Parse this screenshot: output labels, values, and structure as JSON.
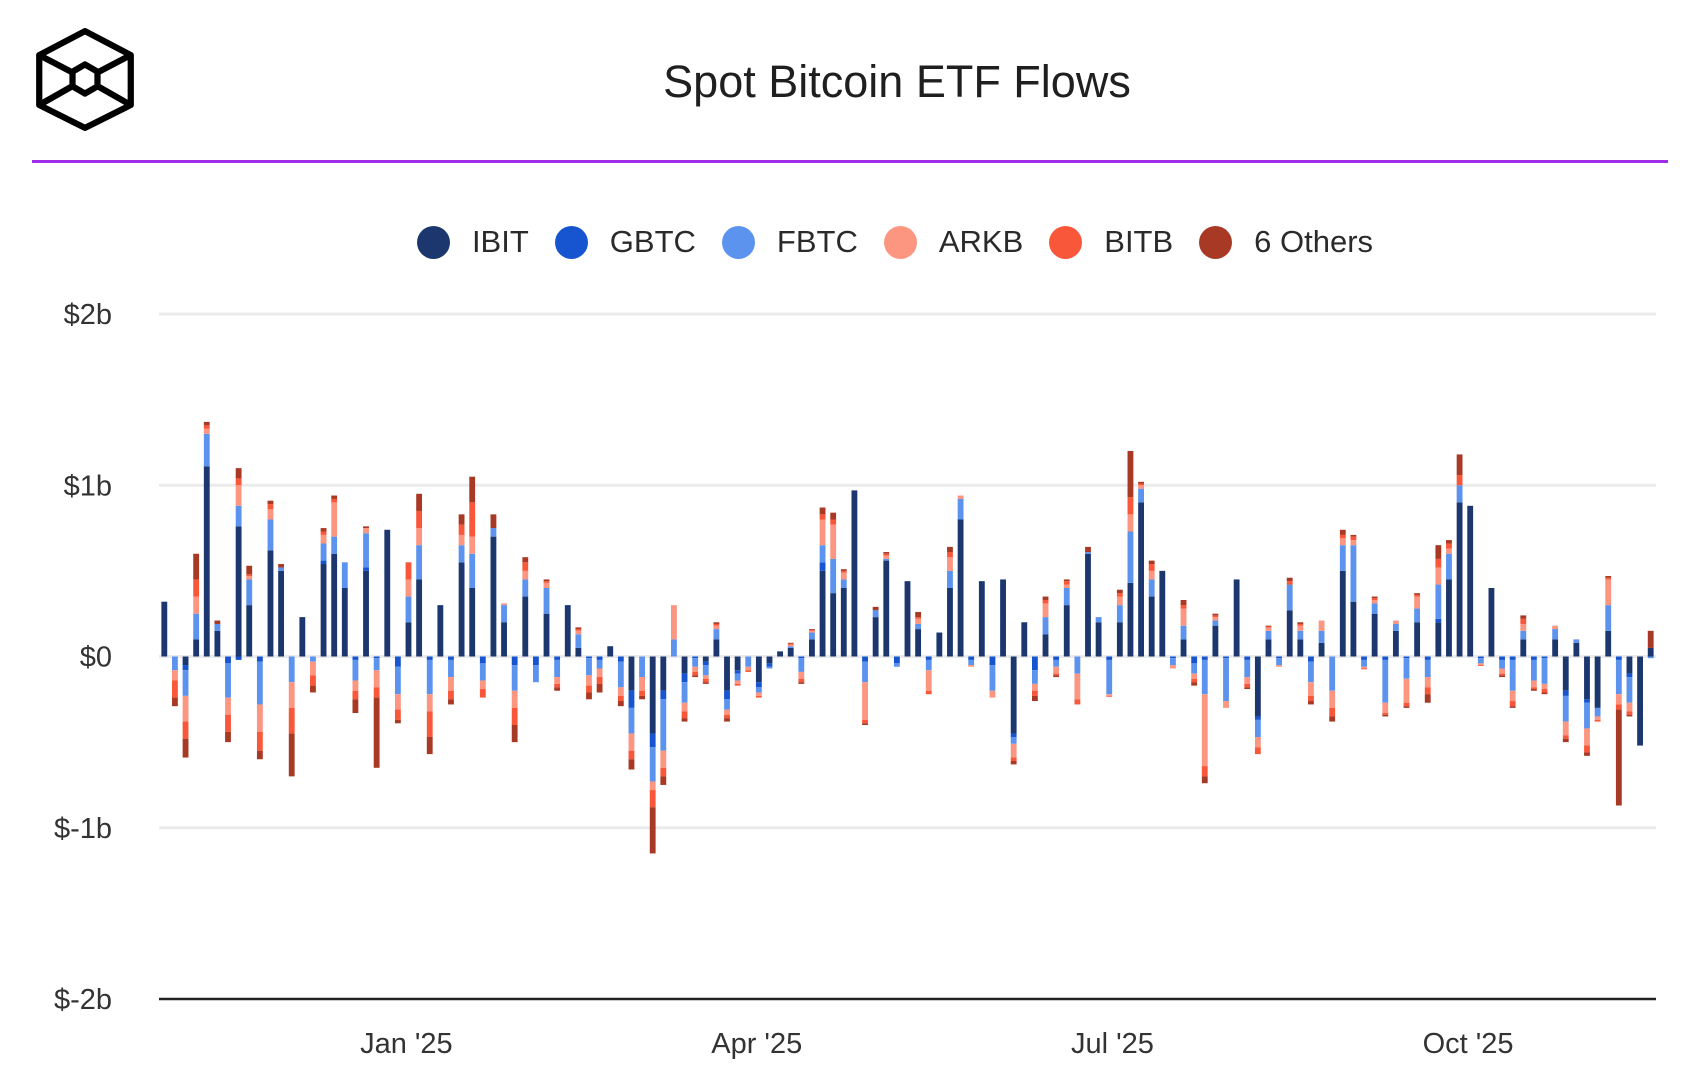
{
  "title": "Spot Bitcoin ETF Flows",
  "logo": {
    "icon": "cube-logo-icon"
  },
  "legend": [
    {
      "label": "IBIT",
      "color": "#1b376d"
    },
    {
      "label": "GBTC",
      "color": "#1655cf"
    },
    {
      "label": "FBTC",
      "color": "#5c93ee"
    },
    {
      "label": "ARKB",
      "color": "#fd9680"
    },
    {
      "label": "BITB",
      "color": "#f9573a"
    },
    {
      "label": "6 Others",
      "color": "#a83a25"
    }
  ],
  "chart_data": {
    "type": "bar",
    "stacked": true,
    "title": "Spot Bitcoin ETF Flows",
    "units": "USD millions",
    "ylim": [
      -2000,
      2000
    ],
    "yticks": [
      {
        "value": 2000,
        "label": "$2b"
      },
      {
        "value": 1000,
        "label": "$1b"
      },
      {
        "value": 0,
        "label": "$0"
      },
      {
        "value": -1000,
        "label": "$-1b"
      },
      {
        "value": -2000,
        "label": "$-2b"
      }
    ],
    "xticks": [
      {
        "index": 22.8,
        "label": "Jan '25"
      },
      {
        "index": 55.8,
        "label": "Apr '25"
      },
      {
        "index": 89.3,
        "label": "Jul '25"
      },
      {
        "index": 122.8,
        "label": "Oct '25"
      }
    ],
    "grid": true,
    "legend_position": "top-center",
    "series_order": [
      "IBIT",
      "GBTC",
      "FBTC",
      "ARKB",
      "BITB",
      "6 Others"
    ],
    "days": [
      [
        320,
        0,
        0,
        0,
        0,
        0
      ],
      [
        0,
        0,
        -80,
        -60,
        -100,
        -50
      ],
      [
        -50,
        -30,
        -150,
        -150,
        -100,
        -110
      ],
      [
        100,
        0,
        150,
        100,
        100,
        150
      ],
      [
        1110,
        0,
        190,
        30,
        20,
        20
      ],
      [
        150,
        0,
        40,
        0,
        0,
        20
      ],
      [
        0,
        -40,
        -200,
        -100,
        -100,
        -60
      ],
      [
        760,
        -20,
        120,
        120,
        40,
        60
      ],
      [
        300,
        0,
        150,
        20,
        10,
        50
      ],
      [
        0,
        -30,
        -250,
        -160,
        -110,
        -50
      ],
      [
        620,
        0,
        180,
        60,
        30,
        20
      ],
      [
        500,
        0,
        20,
        0,
        0,
        20
      ],
      [
        0,
        0,
        -150,
        -150,
        -150,
        -250
      ],
      [
        230,
        0,
        0,
        0,
        0,
        0
      ],
      [
        0,
        0,
        -30,
        -80,
        -60,
        -40
      ],
      [
        540,
        20,
        100,
        50,
        20,
        20
      ],
      [
        600,
        0,
        100,
        200,
        20,
        20
      ],
      [
        400,
        0,
        150,
        0,
        0,
        0
      ],
      [
        0,
        -20,
        -120,
        -60,
        -50,
        -80
      ],
      [
        500,
        20,
        200,
        30,
        0,
        10
      ],
      [
        0,
        -10,
        -70,
        -100,
        -60,
        -410
      ],
      [
        740,
        0,
        0,
        0,
        0,
        0
      ],
      [
        0,
        -60,
        -160,
        -90,
        -60,
        -20
      ],
      [
        200,
        0,
        150,
        100,
        100,
        0
      ],
      [
        450,
        0,
        200,
        100,
        100,
        100
      ],
      [
        0,
        -20,
        -200,
        -100,
        -150,
        -100
      ],
      [
        300,
        0,
        0,
        0,
        0,
        0
      ],
      [
        0,
        -20,
        -100,
        -80,
        -50,
        -30
      ],
      [
        550,
        0,
        100,
        60,
        60,
        60
      ],
      [
        400,
        0,
        200,
        100,
        200,
        150
      ],
      [
        0,
        -40,
        -100,
        -50,
        -50,
        0
      ],
      [
        700,
        0,
        50,
        0,
        0,
        80
      ],
      [
        200,
        0,
        100,
        10,
        0,
        0
      ],
      [
        0,
        -50,
        -150,
        -100,
        -100,
        -100
      ],
      [
        350,
        0,
        100,
        50,
        50,
        30
      ],
      [
        0,
        -50,
        -100,
        0,
        0,
        0
      ],
      [
        250,
        0,
        150,
        30,
        10,
        10
      ],
      [
        0,
        -20,
        -100,
        -40,
        -20,
        -20
      ],
      [
        300,
        0,
        0,
        0,
        0,
        0
      ],
      [
        50,
        0,
        80,
        20,
        10,
        10
      ],
      [
        0,
        -10,
        -100,
        -60,
        -40,
        -40
      ],
      [
        0,
        -20,
        -50,
        -50,
        -40,
        -50
      ],
      [
        60,
        0,
        0,
        0,
        0,
        0
      ],
      [
        0,
        -30,
        -150,
        -50,
        -30,
        -30
      ],
      [
        -200,
        -100,
        -150,
        -100,
        -50,
        -60
      ],
      [
        0,
        0,
        -120,
        -80,
        -30,
        -20
      ],
      [
        -450,
        -80,
        -200,
        -50,
        -100,
        -270
      ],
      [
        -200,
        -50,
        -300,
        -100,
        -50,
        -50
      ],
      [
        0,
        0,
        100,
        200,
        0,
        0
      ],
      [
        -100,
        -50,
        -120,
        -50,
        -40,
        -20
      ],
      [
        0,
        -10,
        -50,
        -30,
        -20,
        -10
      ],
      [
        -30,
        -20,
        -60,
        -20,
        -20,
        -10
      ],
      [
        100,
        0,
        60,
        20,
        10,
        10
      ],
      [
        -200,
        -50,
        -60,
        -30,
        -20,
        -20
      ],
      [
        -80,
        -20,
        -40,
        -20,
        -10,
        0
      ],
      [
        0,
        0,
        -60,
        -20,
        -10,
        0
      ],
      [
        -150,
        -30,
        -30,
        -20,
        -10,
        0
      ],
      [
        -40,
        -20,
        -10,
        0,
        0,
        0
      ],
      [
        30,
        0,
        0,
        0,
        0,
        0
      ],
      [
        50,
        0,
        10,
        10,
        5,
        5
      ],
      [
        0,
        -10,
        -80,
        -40,
        -20,
        -10
      ],
      [
        100,
        0,
        40,
        10,
        5,
        5
      ],
      [
        500,
        50,
        100,
        150,
        30,
        40
      ],
      [
        370,
        0,
        200,
        200,
        30,
        40
      ],
      [
        400,
        0,
        50,
        40,
        10,
        10
      ],
      [
        970,
        0,
        0,
        0,
        0,
        0
      ],
      [
        0,
        -30,
        -120,
        -220,
        -20,
        -10
      ],
      [
        230,
        0,
        40,
        0,
        0,
        20
      ],
      [
        560,
        0,
        10,
        20,
        10,
        10
      ],
      [
        0,
        -40,
        -20,
        0,
        0,
        0
      ],
      [
        440,
        0,
        0,
        0,
        0,
        0
      ],
      [
        160,
        0,
        30,
        30,
        10,
        30
      ],
      [
        0,
        -20,
        -60,
        -120,
        -20,
        0
      ],
      [
        140,
        0,
        0,
        0,
        0,
        0
      ],
      [
        400,
        0,
        100,
        80,
        30,
        30
      ],
      [
        800,
        0,
        120,
        20,
        0,
        0
      ],
      [
        0,
        -20,
        -30,
        -10,
        0,
        0
      ],
      [
        440,
        0,
        0,
        0,
        0,
        0
      ],
      [
        0,
        -50,
        -150,
        -40,
        0,
        0
      ],
      [
        450,
        0,
        0,
        0,
        0,
        0
      ],
      [
        -450,
        -20,
        -40,
        -80,
        -20,
        -20
      ],
      [
        200,
        0,
        0,
        0,
        0,
        0
      ],
      [
        0,
        -80,
        -80,
        -40,
        -30,
        -30
      ],
      [
        130,
        0,
        100,
        80,
        20,
        20
      ],
      [
        0,
        -20,
        -40,
        -40,
        -10,
        -10
      ],
      [
        300,
        0,
        100,
        20,
        20,
        10
      ],
      [
        0,
        0,
        -100,
        -150,
        -30,
        0
      ],
      [
        600,
        0,
        10,
        0,
        0,
        30
      ],
      [
        200,
        0,
        30,
        0,
        0,
        0
      ],
      [
        0,
        -20,
        -200,
        -10,
        -5,
        0
      ],
      [
        200,
        0,
        100,
        50,
        20,
        20
      ],
      [
        430,
        0,
        300,
        100,
        100,
        270
      ],
      [
        900,
        0,
        80,
        20,
        10,
        10
      ],
      [
        350,
        0,
        100,
        50,
        40,
        20
      ],
      [
        500,
        0,
        0,
        0,
        0,
        0
      ],
      [
        0,
        -10,
        -40,
        -20,
        0,
        0
      ],
      [
        100,
        0,
        80,
        100,
        20,
        30
      ],
      [
        0,
        -40,
        -60,
        -30,
        -20,
        -20
      ],
      [
        0,
        -20,
        -200,
        -420,
        -60,
        -40
      ],
      [
        180,
        0,
        30,
        20,
        10,
        10
      ],
      [
        0,
        -10,
        -250,
        -40,
        0,
        0
      ],
      [
        450,
        0,
        0,
        0,
        0,
        0
      ],
      [
        0,
        -20,
        -100,
        -40,
        -20,
        -10
      ],
      [
        -350,
        -20,
        -100,
        -60,
        -40,
        0
      ],
      [
        100,
        0,
        50,
        20,
        5,
        5
      ],
      [
        0,
        -10,
        -40,
        -10,
        0,
        0
      ],
      [
        270,
        0,
        150,
        0,
        20,
        20
      ],
      [
        100,
        0,
        50,
        30,
        10,
        10
      ],
      [
        0,
        -30,
        -120,
        -80,
        -30,
        -20
      ],
      [
        80,
        0,
        70,
        60,
        0,
        0
      ],
      [
        0,
        0,
        -200,
        -100,
        -50,
        -30
      ],
      [
        500,
        0,
        150,
        40,
        20,
        30
      ],
      [
        320,
        0,
        330,
        30,
        20,
        10
      ],
      [
        0,
        -20,
        -40,
        -10,
        -5,
        0
      ],
      [
        250,
        0,
        60,
        20,
        10,
        10
      ],
      [
        0,
        -20,
        -250,
        -60,
        -10,
        -10
      ],
      [
        150,
        0,
        40,
        20,
        0,
        0
      ],
      [
        0,
        -10,
        -120,
        -140,
        -20,
        -10
      ],
      [
        200,
        0,
        80,
        70,
        10,
        10
      ],
      [
        0,
        -20,
        -100,
        -60,
        -40,
        -50
      ],
      [
        200,
        20,
        200,
        100,
        50,
        80
      ],
      [
        450,
        0,
        150,
        30,
        30,
        20
      ],
      [
        900,
        0,
        100,
        0,
        60,
        120
      ],
      [
        880,
        0,
        0,
        0,
        0,
        0
      ],
      [
        0,
        -10,
        -30,
        -10,
        -5,
        0
      ],
      [
        400,
        0,
        0,
        0,
        0,
        0
      ],
      [
        0,
        -20,
        -50,
        -30,
        -10,
        -10
      ],
      [
        0,
        -20,
        -180,
        -60,
        -30,
        -10
      ],
      [
        100,
        0,
        50,
        40,
        30,
        20
      ],
      [
        0,
        -20,
        -120,
        -40,
        -10,
        -10
      ],
      [
        0,
        -10,
        -150,
        -30,
        -20,
        -10
      ],
      [
        100,
        0,
        60,
        20,
        0,
        0
      ],
      [
        -200,
        -30,
        -150,
        -80,
        -20,
        -20
      ],
      [
        80,
        0,
        20,
        0,
        0,
        0
      ],
      [
        -250,
        -20,
        -150,
        -100,
        -40,
        -20
      ],
      [
        -300,
        0,
        -50,
        -20,
        -10,
        0
      ],
      [
        150,
        0,
        150,
        150,
        10,
        10
      ],
      [
        0,
        -20,
        -200,
        -60,
        -30,
        -560
      ],
      [
        -100,
        -20,
        -150,
        -50,
        -20,
        -10
      ],
      [
        -520,
        0,
        0,
        0,
        0,
        0
      ],
      [
        50,
        0,
        -10,
        0,
        0,
        100
      ]
    ]
  }
}
